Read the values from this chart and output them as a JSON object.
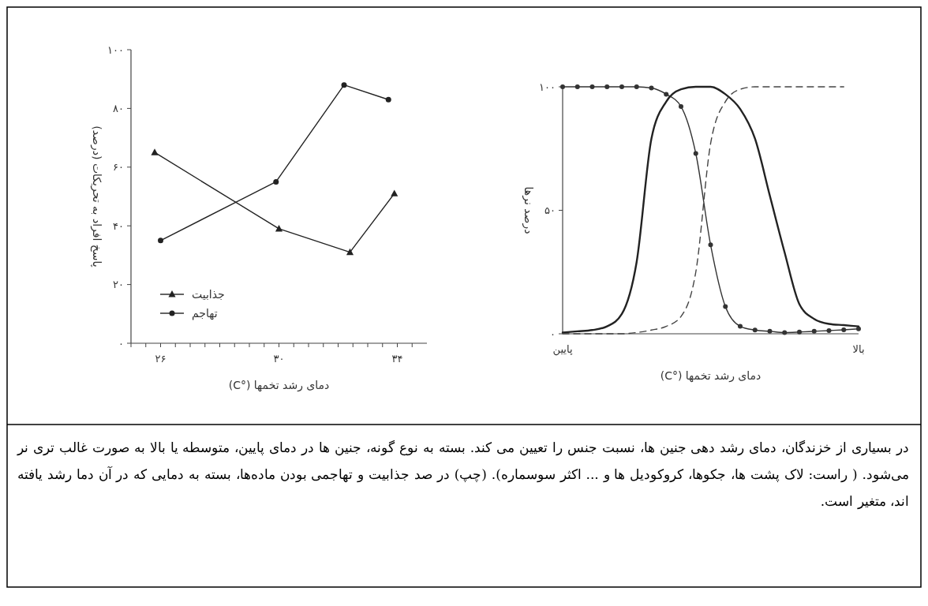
{
  "chart_data": [
    {
      "type": "line",
      "xlabel": "دمای رشد تخمها (°C)",
      "ylabel": "پاسخ افراد به تحریکات (درصد)",
      "xlim": [
        25,
        35
      ],
      "xticks": [
        {
          "value": 25,
          "label": null
        },
        {
          "value": 25.5,
          "label": null
        },
        {
          "value": 26,
          "label": "۲۶"
        },
        {
          "value": 26.5,
          "label": null
        },
        {
          "value": 27,
          "label": null
        },
        {
          "value": 27.5,
          "label": null
        },
        {
          "value": 28,
          "label": null
        },
        {
          "value": 28.5,
          "label": null
        },
        {
          "value": 29,
          "label": null
        },
        {
          "value": 29.5,
          "label": null
        },
        {
          "value": 30,
          "label": "۳۰"
        },
        {
          "value": 30.5,
          "label": null
        },
        {
          "value": 31,
          "label": null
        },
        {
          "value": 31.5,
          "label": null
        },
        {
          "value": 32,
          "label": null
        },
        {
          "value": 32.5,
          "label": null
        },
        {
          "value": 33,
          "label": null
        },
        {
          "value": 33.5,
          "label": null
        },
        {
          "value": 34,
          "label": "۳۴"
        },
        {
          "value": 34.5,
          "label": null
        }
      ],
      "ylim": [
        0,
        100
      ],
      "yticks": [
        {
          "value": 0,
          "label": "۰"
        },
        {
          "value": 20,
          "label": "۲۰"
        },
        {
          "value": 40,
          "label": "۴۰"
        },
        {
          "value": 60,
          "label": "۶۰"
        },
        {
          "value": 80,
          "label": "۸۰"
        },
        {
          "value": 100,
          "label": "۱۰۰"
        }
      ],
      "legend": "bottom left",
      "grid": false,
      "series": [
        {
          "name": "جذابیت",
          "color": "#222222",
          "marker": "triangle",
          "x": [
            25.8,
            30,
            32.4,
            33.9
          ],
          "values": [
            65,
            39,
            31,
            51
          ]
        },
        {
          "name": "تهاجم",
          "color": "#222222",
          "marker": "circle",
          "x": [
            26,
            29.9,
            32.2,
            33.7
          ],
          "values": [
            35,
            55,
            88,
            83
          ]
        }
      ],
      "annotations": [
        "در بسیاری از خزندگان، دمای رشد دهی جنین ها، نسبت جنس را تعیین می کند. بسته به نوع گونه، جنین ها در دمای پایین، متوسطه یا بالا به صورت غالب تری نر می‌شود. ( راست: لاک پشت ها، جکوها، کروکودیل ها و ... اکثر سوسماره). (چپ) در صد جذابیت و تهاجمی بودن ماده‌ها، بسته به دمایی که در آن دما رشد یافته اند، متغیر است."
      ]
    },
    {
      "type": "line",
      "xlabel": "دمای رشد تخمها (°C)",
      "ylabel": "درصد نرها",
      "categories": [
        "پایین",
        null,
        null,
        null,
        null,
        null,
        null,
        null,
        null,
        null,
        null,
        null,
        null,
        null,
        null,
        null,
        null,
        null,
        null,
        null,
        "بالا"
      ],
      "ylim": [
        0,
        100
      ],
      "yticks": [
        {
          "value": 0,
          "label": "۰"
        },
        {
          "value": 50,
          "label": "۵۰"
        },
        {
          "value": 100,
          "label": "۱۰۰"
        }
      ],
      "legend": false,
      "grid": false,
      "series": [
        {
          "color": "#333333",
          "marker": "circle",
          "line_style": "solid",
          "values": [
            100,
            100,
            100,
            100,
            100,
            100,
            99.5,
            97,
            92,
            73,
            36,
            11,
            3,
            1.5,
            1,
            0.5,
            0.7,
            1,
            1.3,
            1.6,
            2
          ]
        },
        {
          "color": "#222222",
          "marker": "none",
          "line_style": "solid",
          "values": [
            0.5,
            1,
            1.5,
            3,
            8,
            29,
            79,
            94,
            99,
            100,
            100,
            97,
            91,
            79,
            56,
            33,
            12,
            6,
            4,
            3.5,
            3
          ]
        },
        {
          "color": "#444444",
          "marker": "none",
          "line_style": "dashed",
          "values": [
            0,
            0,
            0,
            0,
            0,
            0.5,
            1.5,
            3,
            7,
            25,
            77,
            94,
            99,
            100,
            100,
            100,
            100,
            100,
            100,
            100,
            null
          ]
        }
      ]
    }
  ]
}
